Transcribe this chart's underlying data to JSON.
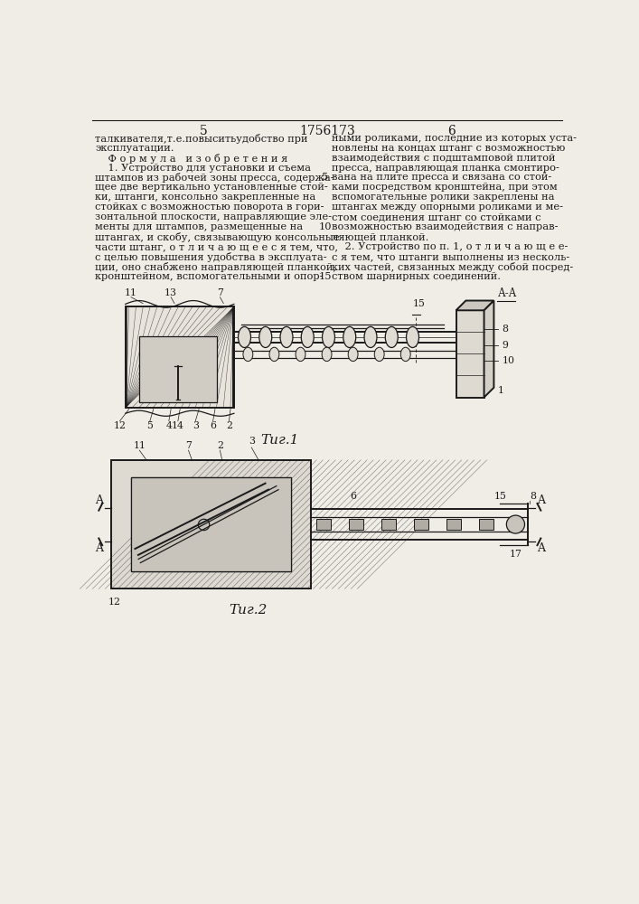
{
  "page_number_left": "5",
  "patent_number": "1756173",
  "page_number_right": "6",
  "bg_color": "#f0ede6",
  "text_color": "#1a1a1a",
  "fig1_caption": "Τиг.1",
  "fig2_caption": "Τиг.2",
  "left_col_text": [
    [
      "талкивателя,т.е.повыситьудобство при",
      false
    ],
    [
      "эксплуатации.",
      false
    ],
    [
      "    Ф о р м у л а   и з о б р е т е н и я",
      false
    ],
    [
      "    1. Устройство для установки и съема",
      false
    ],
    [
      "штампов из рабочей зоны пресса, содержа-",
      true
    ],
    [
      "щее две вертикально установленные стой-",
      false
    ],
    [
      "ки, штанги, консольно закрепленные на",
      false
    ],
    [
      "стойках с возможностью поворота в гори-",
      false
    ],
    [
      "зонтальной плоскости, направляющие эле-",
      false
    ],
    [
      "менты для штампов, размещенные на",
      true
    ],
    [
      "штангах, и скобу, связывающую консольные",
      false
    ],
    [
      "части штанг, о т л и ч а ю щ е е с я тем, что,",
      false
    ],
    [
      "с целью повышения удобства в эксплуата-",
      false
    ],
    [
      "ции, оно снабжено направляющей планкой,",
      false
    ],
    [
      "кронштейном, вспомогательными и опор-",
      true
    ]
  ],
  "right_col_text": [
    [
      "ными роликами, последние из которых уста-",
      false
    ],
    [
      "новлены на концах штанг с возможностью",
      false
    ],
    [
      "взаимодействия с подштамповой плитой",
      false
    ],
    [
      "пресса, направляющая планка смонтиро-",
      false
    ],
    [
      "вана на плите пресса и связана со стой-",
      true
    ],
    [
      "ками посредством кронштейна, при этом",
      false
    ],
    [
      "вспомогательные ролики закреплены на",
      false
    ],
    [
      "штангах между опорными роликами и ме-",
      false
    ],
    [
      "стом соединения штанг со стойками с",
      false
    ],
    [
      "возможностью взаимодействия с направ-",
      true
    ],
    [
      "ляющей планкой.",
      false
    ],
    [
      "    2. Устройство по п. 1, о т л и ч а ю щ е е-",
      false
    ],
    [
      "с я тем, что штанги выполнены из несколь-",
      false
    ],
    [
      "ких частей, связанных между собой посред-",
      false
    ],
    [
      "ством шарнирных соединений.",
      false
    ]
  ]
}
